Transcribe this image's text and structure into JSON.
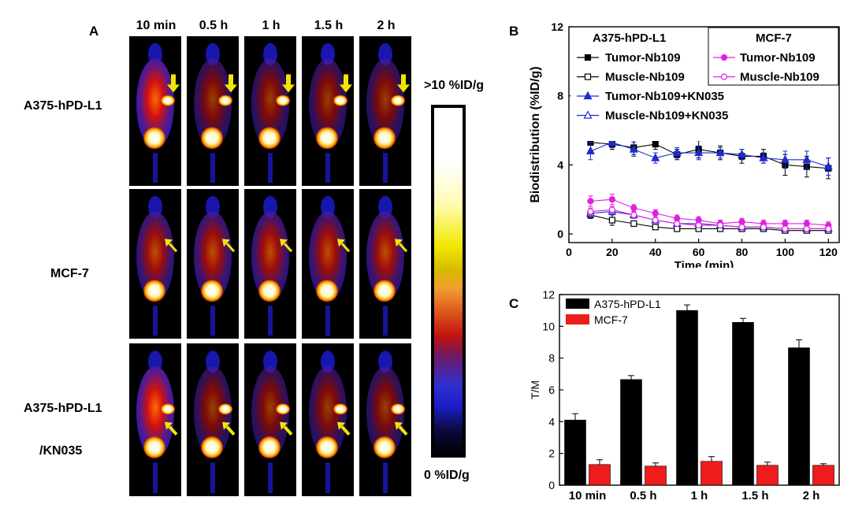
{
  "panel_a": {
    "letter": "A",
    "timepoints": [
      "10 min",
      "0.5 h",
      "1 h",
      "1.5 h",
      "2 h"
    ],
    "rows": [
      "A375-hPD-L1",
      "MCF-7",
      "A375-hPD-L1",
      "/KN035"
    ],
    "colorbar_max": ">10 %ID/g",
    "colorbar_min": "0 %ID/g",
    "arrow_color": "#f2e600"
  },
  "chart_data": [
    {
      "panel": "B",
      "type": "line",
      "xlabel": "Time (min)",
      "ylabel": "Biodistribution (%ID/g)",
      "xlim": [
        0,
        125
      ],
      "ylim": [
        -0.5,
        12
      ],
      "xticks": [
        0,
        20,
        40,
        60,
        80,
        100,
        120
      ],
      "yticks": [
        0,
        4,
        8,
        12
      ],
      "x": [
        10,
        20,
        30,
        40,
        50,
        60,
        70,
        80,
        90,
        100,
        110,
        120
      ],
      "legend_headers": [
        "A375-hPD-L1",
        "MCF-7"
      ],
      "series": [
        {
          "name": "Tumor-Nb109",
          "group": "A375-hPD-L1",
          "color": "#000000",
          "marker": "square-filled",
          "values": [
            5.3,
            5.2,
            5.0,
            5.2,
            4.6,
            4.9,
            4.7,
            4.5,
            4.5,
            4.0,
            3.9,
            3.8
          ],
          "errors": [
            0.5,
            0.3,
            0.4,
            0.3,
            0.3,
            0.5,
            0.4,
            0.4,
            0.4,
            0.6,
            0.6,
            0.6
          ]
        },
        {
          "name": "Muscle-Nb109",
          "group": "A375-hPD-L1",
          "color": "#000000",
          "marker": "square-open",
          "values": [
            1.1,
            0.8,
            0.6,
            0.4,
            0.3,
            0.3,
            0.3,
            0.3,
            0.3,
            0.2,
            0.2,
            0.2
          ],
          "errors": [
            0.2,
            0.3,
            0.1,
            0.1,
            0.1,
            0.1,
            0.1,
            0.1,
            0.1,
            0.1,
            0.1,
            0.1
          ]
        },
        {
          "name": "Tumor-Nb109+KN035",
          "group": "A375-hPD-L1",
          "color": "#1f2bd1",
          "marker": "triangle-filled",
          "values": [
            4.8,
            5.3,
            4.9,
            4.4,
            4.7,
            4.7,
            4.7,
            4.6,
            4.4,
            4.3,
            4.3,
            3.9
          ],
          "errors": [
            0.5,
            0.3,
            0.4,
            0.3,
            0.3,
            0.4,
            0.3,
            0.3,
            0.3,
            0.5,
            0.5,
            0.5
          ]
        },
        {
          "name": "Muscle-Nb109+KN035",
          "group": "A375-hPD-L1",
          "color": "#1f2bd1",
          "marker": "triangle-open",
          "values": [
            1.2,
            1.3,
            1.1,
            0.8,
            0.6,
            0.6,
            0.5,
            0.4,
            0.4,
            0.3,
            0.3,
            0.3
          ],
          "errors": [
            0.2,
            0.2,
            0.2,
            0.1,
            0.1,
            0.1,
            0.1,
            0.1,
            0.1,
            0.1,
            0.1,
            0.1
          ]
        },
        {
          "name": "Tumor-Nb109",
          "group": "MCF-7",
          "color": "#e020e0",
          "marker": "circle-filled",
          "values": [
            1.9,
            2.0,
            1.5,
            1.2,
            0.9,
            0.8,
            0.6,
            0.7,
            0.6,
            0.6,
            0.6,
            0.5
          ],
          "errors": [
            0.3,
            0.3,
            0.2,
            0.2,
            0.2,
            0.2,
            0.2,
            0.2,
            0.2,
            0.2,
            0.2,
            0.2
          ]
        },
        {
          "name": "Muscle-Nb109",
          "group": "MCF-7",
          "color": "#e020e0",
          "marker": "circle-open",
          "values": [
            1.3,
            1.4,
            1.1,
            0.8,
            0.6,
            0.5,
            0.5,
            0.4,
            0.4,
            0.3,
            0.3,
            0.3
          ],
          "errors": [
            0.2,
            0.2,
            0.2,
            0.1,
            0.1,
            0.1,
            0.1,
            0.1,
            0.1,
            0.1,
            0.1,
            0.1
          ]
        }
      ]
    },
    {
      "panel": "C",
      "type": "bar",
      "ylabel": "T/M",
      "ylim": [
        0,
        12
      ],
      "yticks": [
        0,
        2,
        4,
        6,
        8,
        10,
        12
      ],
      "categories": [
        "10 min",
        "0.5 h",
        "1 h",
        "1.5 h",
        "2 h"
      ],
      "series": [
        {
          "name": "A375-hPD-L1",
          "color": "#000000",
          "values": [
            4.1,
            6.65,
            11.0,
            10.25,
            8.65
          ],
          "errors": [
            0.4,
            0.25,
            0.35,
            0.25,
            0.5
          ]
        },
        {
          "name": "MCF-7",
          "color": "#ee1c1c",
          "values": [
            1.3,
            1.2,
            1.5,
            1.25,
            1.25
          ],
          "errors": [
            0.3,
            0.2,
            0.3,
            0.2,
            0.1
          ]
        }
      ]
    }
  ]
}
